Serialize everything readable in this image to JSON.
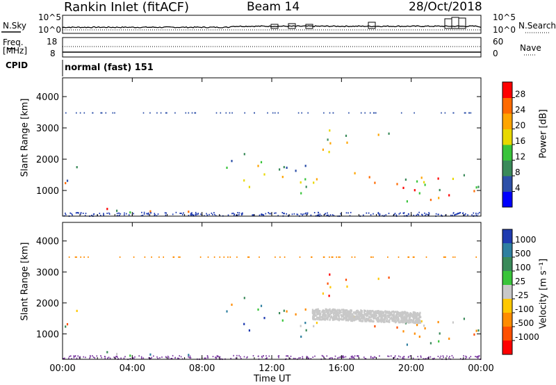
{
  "header": {
    "station": "Rankin Inlet (fitACF)",
    "beam": "Beam 14",
    "date": "28/Oct/2018"
  },
  "top_panels": {
    "nsky_label": "N.Sky",
    "nsky_ticks": [
      "10^5",
      "10^0"
    ],
    "nsearch_label": "N.Search",
    "nsearch_ticks": [
      "10^5",
      "10^0"
    ],
    "freq_label_1": "Freq.",
    "freq_label_2": "[MHz]",
    "freq_ticks": [
      "18",
      "8"
    ],
    "nave_label": "Nave",
    "nave_ticks": [
      "60",
      "0"
    ],
    "cpid_label": "CPID",
    "cpid_value": "normal (fast) 151"
  },
  "chart_data": [
    {
      "type": "heatmap",
      "name": "Power",
      "ylabel": "Slant Range [km]",
      "ylim": [
        180,
        4600
      ],
      "yticks": [
        "4000",
        "3000",
        "2000",
        "1000"
      ],
      "colorbar_label": "Power [dB]",
      "colorbar_ticks": [
        "28",
        "24",
        "20",
        "16",
        "12",
        "8",
        "4"
      ],
      "colorbar_colors": [
        "#0000ff",
        "#2c4fa8",
        "#3a8a5a",
        "#39c43a",
        "#e8d800",
        "#ffa500",
        "#ff6a00",
        "#ff0000"
      ]
    },
    {
      "type": "heatmap",
      "name": "Velocity",
      "ylabel": "Slant Range [km]",
      "ylim": [
        180,
        4600
      ],
      "yticks": [
        "4000",
        "3000",
        "2000",
        "1000"
      ],
      "colorbar_label": "Velocity [m s⁻¹]",
      "colorbar_ticks": [
        "1000",
        "500",
        "100",
        "25",
        "-25",
        "-100",
        "-500",
        "-1000"
      ],
      "colorbar_colors": [
        "#1f3bb0",
        "#2e7fa0",
        "#3a8a5a",
        "#39c43a",
        "#c8c8c8",
        "#ffc800",
        "#ff8c00",
        "#ff5000",
        "#ff0000"
      ]
    }
  ],
  "xaxis": {
    "label": "Time UT",
    "ticks": [
      "00:00",
      "04:00",
      "08:00",
      "12:00",
      "16:00",
      "20:00",
      "00:00"
    ]
  }
}
